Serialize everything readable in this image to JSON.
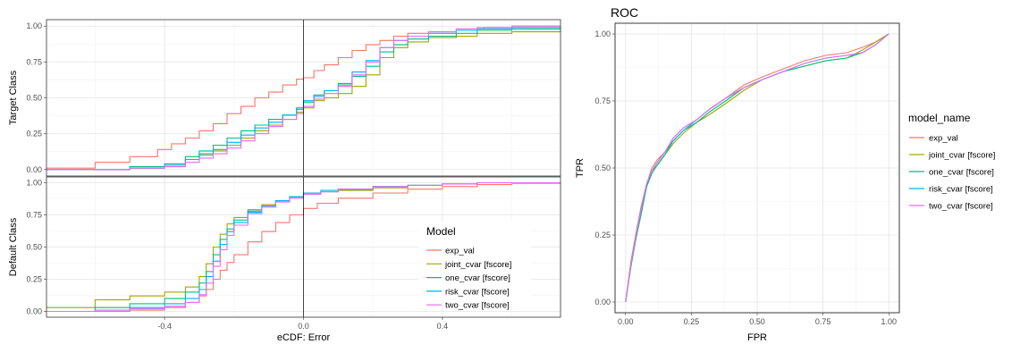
{
  "chart_data": [
    {
      "type": "line",
      "id": "ecdf",
      "xlabel": "eCDF: Error",
      "x_ticks": [
        -0.4,
        0.0,
        0.4
      ],
      "x_tick_labels": [
        "-0.4",
        "0.0",
        "0.4"
      ],
      "xlim": [
        -0.74,
        0.74
      ],
      "vline": 0,
      "grid": true,
      "legend": {
        "title": "Model",
        "placement": "inside-bottom-right-of-lower-facet",
        "entries": [
          "exp_val",
          "joint_cvar [fscore]",
          "one_cvar [fscore]",
          "risk_cvar [fscore]",
          "two_cvar [fscore]"
        ]
      },
      "facets": [
        {
          "label": "Target Class",
          "ylim": [
            0,
            1
          ],
          "y_ticks": [
            0,
            0.25,
            0.5,
            0.75,
            1
          ],
          "y_tick_labels": [
            "0.00",
            "0.25",
            "0.50",
            "0.75",
            "1.00"
          ],
          "series": [
            {
              "name": "exp_val",
              "color": "#F8766D",
              "x": [
                -0.74,
                -0.6,
                -0.5,
                -0.42,
                -0.38,
                -0.34,
                -0.3,
                -0.26,
                -0.22,
                -0.18,
                -0.14,
                -0.1,
                -0.06,
                -0.02,
                0.0,
                0.03,
                0.06,
                0.1,
                0.14,
                0.18,
                0.22,
                0.26,
                0.3,
                0.36,
                0.44,
                0.52,
                0.6,
                0.74
              ],
              "y": [
                0.01,
                0.05,
                0.09,
                0.14,
                0.18,
                0.22,
                0.27,
                0.32,
                0.39,
                0.44,
                0.5,
                0.54,
                0.59,
                0.63,
                0.64,
                0.69,
                0.73,
                0.78,
                0.83,
                0.87,
                0.9,
                0.93,
                0.95,
                0.96,
                0.98,
                0.99,
                1.0,
                1.0
              ]
            },
            {
              "name": "joint_cvar [fscore]",
              "color": "#A3A500",
              "x": [
                -0.74,
                -0.5,
                -0.4,
                -0.34,
                -0.3,
                -0.26,
                -0.22,
                -0.18,
                -0.14,
                -0.1,
                -0.06,
                -0.02,
                0.0,
                0.03,
                0.06,
                0.1,
                0.14,
                0.18,
                0.22,
                0.26,
                0.3,
                0.36,
                0.44,
                0.5,
                0.6,
                0.74
              ],
              "y": [
                0.0,
                0.01,
                0.03,
                0.07,
                0.1,
                0.13,
                0.17,
                0.22,
                0.27,
                0.31,
                0.35,
                0.4,
                0.43,
                0.48,
                0.5,
                0.53,
                0.58,
                0.66,
                0.78,
                0.85,
                0.89,
                0.92,
                0.93,
                0.95,
                0.96,
                0.97
              ]
            },
            {
              "name": "one_cvar [fscore]",
              "color": "#00BF7D",
              "x": [
                -0.74,
                -0.5,
                -0.4,
                -0.34,
                -0.3,
                -0.26,
                -0.22,
                -0.18,
                -0.14,
                -0.1,
                -0.06,
                -0.02,
                0.0,
                0.03,
                0.06,
                0.1,
                0.14,
                0.18,
                0.22,
                0.26,
                0.3,
                0.36,
                0.44,
                0.5,
                0.6,
                0.74
              ],
              "y": [
                0.0,
                0.02,
                0.04,
                0.09,
                0.13,
                0.17,
                0.22,
                0.27,
                0.31,
                0.35,
                0.38,
                0.42,
                0.47,
                0.52,
                0.55,
                0.59,
                0.65,
                0.72,
                0.82,
                0.87,
                0.91,
                0.93,
                0.95,
                0.97,
                0.98,
                0.99
              ]
            },
            {
              "name": "risk_cvar [fscore]",
              "color": "#00B0F6",
              "x": [
                -0.74,
                -0.5,
                -0.4,
                -0.34,
                -0.3,
                -0.26,
                -0.22,
                -0.18,
                -0.14,
                -0.1,
                -0.06,
                -0.02,
                0.0,
                0.03,
                0.06,
                0.1,
                0.14,
                0.18,
                0.22,
                0.26,
                0.3,
                0.36,
                0.44,
                0.5,
                0.6,
                0.74
              ],
              "y": [
                0.0,
                0.01,
                0.03,
                0.07,
                0.11,
                0.14,
                0.19,
                0.24,
                0.29,
                0.33,
                0.38,
                0.43,
                0.48,
                0.51,
                0.55,
                0.6,
                0.68,
                0.76,
                0.85,
                0.9,
                0.93,
                0.95,
                0.97,
                0.98,
                0.99,
                0.99
              ]
            },
            {
              "name": "two_cvar [fscore]",
              "color": "#E76BF3",
              "x": [
                -0.74,
                -0.5,
                -0.4,
                -0.34,
                -0.3,
                -0.26,
                -0.22,
                -0.18,
                -0.14,
                -0.1,
                -0.06,
                -0.02,
                0.0,
                0.03,
                0.06,
                0.1,
                0.14,
                0.18,
                0.22,
                0.26,
                0.3,
                0.36,
                0.44,
                0.5,
                0.6,
                0.74
              ],
              "y": [
                0.0,
                0.01,
                0.02,
                0.05,
                0.08,
                0.11,
                0.15,
                0.2,
                0.25,
                0.3,
                0.35,
                0.39,
                0.44,
                0.49,
                0.53,
                0.58,
                0.66,
                0.75,
                0.85,
                0.9,
                0.93,
                0.96,
                0.98,
                0.99,
                1.0,
                1.0
              ]
            }
          ]
        },
        {
          "label": "Default Class",
          "ylim": [
            0,
            1
          ],
          "y_ticks": [
            0,
            0.25,
            0.5,
            0.75,
            1
          ],
          "y_tick_labels": [
            "0.00",
            "0.25",
            "0.50",
            "0.75",
            "1.00"
          ],
          "series": [
            {
              "name": "exp_val",
              "color": "#F8766D",
              "x": [
                -0.74,
                -0.5,
                -0.4,
                -0.34,
                -0.3,
                -0.28,
                -0.26,
                -0.24,
                -0.22,
                -0.2,
                -0.16,
                -0.12,
                -0.08,
                -0.04,
                0.0,
                0.04,
                0.1,
                0.2,
                0.3,
                0.4,
                0.5,
                0.6,
                0.74
              ],
              "y": [
                0.0,
                0.01,
                0.03,
                0.07,
                0.12,
                0.17,
                0.25,
                0.32,
                0.38,
                0.44,
                0.54,
                0.62,
                0.69,
                0.75,
                0.8,
                0.84,
                0.88,
                0.92,
                0.95,
                0.97,
                0.985,
                0.995,
                1.0
              ]
            },
            {
              "name": "joint_cvar [fscore]",
              "color": "#A3A500",
              "x": [
                -0.74,
                -0.6,
                -0.5,
                -0.4,
                -0.34,
                -0.3,
                -0.28,
                -0.26,
                -0.24,
                -0.22,
                -0.2,
                -0.16,
                -0.12,
                -0.08,
                -0.04,
                0.0,
                0.05,
                0.1,
                0.2,
                0.3,
                0.4,
                0.5,
                0.74
              ],
              "y": [
                0.03,
                0.09,
                0.12,
                0.15,
                0.19,
                0.27,
                0.37,
                0.5,
                0.6,
                0.68,
                0.73,
                0.79,
                0.83,
                0.86,
                0.89,
                0.91,
                0.93,
                0.94,
                0.96,
                0.98,
                0.99,
                1.0,
                1.0
              ]
            },
            {
              "name": "one_cvar [fscore]",
              "color": "#00BF7D",
              "x": [
                -0.74,
                -0.6,
                -0.5,
                -0.4,
                -0.34,
                -0.3,
                -0.28,
                -0.26,
                -0.24,
                -0.22,
                -0.2,
                -0.16,
                -0.12,
                -0.08,
                -0.04,
                0.0,
                0.05,
                0.1,
                0.2,
                0.3,
                0.4,
                0.5,
                0.74
              ],
              "y": [
                0.0,
                0.03,
                0.06,
                0.1,
                0.15,
                0.22,
                0.31,
                0.44,
                0.56,
                0.64,
                0.71,
                0.78,
                0.82,
                0.86,
                0.89,
                0.91,
                0.93,
                0.95,
                0.97,
                0.98,
                0.99,
                1.0,
                1.0
              ]
            },
            {
              "name": "risk_cvar [fscore]",
              "color": "#00B0F6",
              "x": [
                -0.74,
                -0.6,
                -0.5,
                -0.4,
                -0.34,
                -0.3,
                -0.28,
                -0.26,
                -0.24,
                -0.22,
                -0.2,
                -0.16,
                -0.12,
                -0.08,
                -0.04,
                0.0,
                0.05,
                0.1,
                0.2,
                0.3,
                0.4,
                0.5,
                0.74
              ],
              "y": [
                0.0,
                0.01,
                0.03,
                0.06,
                0.1,
                0.17,
                0.27,
                0.39,
                0.52,
                0.62,
                0.69,
                0.77,
                0.82,
                0.86,
                0.89,
                0.92,
                0.94,
                0.95,
                0.97,
                0.98,
                0.99,
                1.0,
                1.0
              ]
            },
            {
              "name": "two_cvar [fscore]",
              "color": "#E76BF3",
              "x": [
                -0.74,
                -0.6,
                -0.5,
                -0.4,
                -0.34,
                -0.3,
                -0.28,
                -0.26,
                -0.24,
                -0.22,
                -0.2,
                -0.16,
                -0.12,
                -0.08,
                -0.04,
                0.0,
                0.05,
                0.1,
                0.2,
                0.3,
                0.4,
                0.5,
                0.74
              ],
              "y": [
                0.0,
                0.01,
                0.02,
                0.04,
                0.07,
                0.13,
                0.22,
                0.35,
                0.48,
                0.59,
                0.67,
                0.76,
                0.81,
                0.85,
                0.88,
                0.91,
                0.93,
                0.95,
                0.97,
                0.98,
                0.99,
                1.0,
                1.0
              ]
            }
          ]
        }
      ]
    },
    {
      "type": "line",
      "id": "roc",
      "title": "ROC",
      "xlabel": "FPR",
      "ylabel": "TPR",
      "xlim": [
        -0.04,
        1.04
      ],
      "ylim": [
        -0.04,
        1.04
      ],
      "x_ticks": [
        0,
        0.25,
        0.5,
        0.75,
        1
      ],
      "x_tick_labels": [
        "0.00",
        "0.25",
        "0.50",
        "0.75",
        "1.00"
      ],
      "y_ticks": [
        0,
        0.25,
        0.5,
        0.75,
        1
      ],
      "y_tick_labels": [
        "0.00",
        "0.25",
        "0.50",
        "0.75",
        "1.00"
      ],
      "grid": true,
      "legend": {
        "title": "model_name",
        "placement": "right",
        "entries": [
          "exp_val",
          "joint_cvar [fscore]",
          "one_cvar [fscore]",
          "risk_cvar [fscore]",
          "two_cvar [fscore]"
        ]
      },
      "series": [
        {
          "name": "exp_val",
          "color": "#F8766D",
          "x": [
            0,
            0.02,
            0.04,
            0.06,
            0.08,
            0.1,
            0.12,
            0.15,
            0.18,
            0.22,
            0.27,
            0.32,
            0.38,
            0.45,
            0.52,
            0.6,
            0.68,
            0.76,
            0.84,
            0.9,
            0.95,
            1.0
          ],
          "y": [
            0,
            0.15,
            0.26,
            0.36,
            0.44,
            0.5,
            0.53,
            0.56,
            0.61,
            0.65,
            0.68,
            0.72,
            0.76,
            0.81,
            0.84,
            0.87,
            0.9,
            0.92,
            0.93,
            0.95,
            0.97,
            1.0
          ]
        },
        {
          "name": "joint_cvar [fscore]",
          "color": "#A3A500",
          "x": [
            0,
            0.02,
            0.04,
            0.06,
            0.08,
            0.1,
            0.12,
            0.15,
            0.18,
            0.22,
            0.27,
            0.32,
            0.38,
            0.45,
            0.52,
            0.6,
            0.68,
            0.76,
            0.84,
            0.9,
            0.95,
            1.0
          ],
          "y": [
            0,
            0.14,
            0.24,
            0.34,
            0.43,
            0.49,
            0.51,
            0.55,
            0.59,
            0.63,
            0.67,
            0.7,
            0.74,
            0.79,
            0.83,
            0.86,
            0.88,
            0.9,
            0.91,
            0.94,
            0.97,
            1.0
          ]
        },
        {
          "name": "one_cvar [fscore]",
          "color": "#00BF7D",
          "x": [
            0,
            0.02,
            0.04,
            0.06,
            0.08,
            0.1,
            0.12,
            0.15,
            0.18,
            0.22,
            0.27,
            0.32,
            0.38,
            0.45,
            0.52,
            0.6,
            0.68,
            0.76,
            0.84,
            0.9,
            0.95,
            1.0
          ],
          "y": [
            0,
            0.13,
            0.24,
            0.33,
            0.43,
            0.48,
            0.51,
            0.55,
            0.6,
            0.64,
            0.67,
            0.71,
            0.75,
            0.8,
            0.83,
            0.86,
            0.88,
            0.9,
            0.91,
            0.93,
            0.96,
            1.0
          ]
        },
        {
          "name": "risk_cvar [fscore]",
          "color": "#00B0F6",
          "x": [
            0,
            0.02,
            0.04,
            0.06,
            0.08,
            0.1,
            0.12,
            0.15,
            0.18,
            0.22,
            0.27,
            0.32,
            0.38,
            0.45,
            0.52,
            0.6,
            0.68,
            0.76,
            0.84,
            0.9,
            0.95,
            1.0
          ],
          "y": [
            0,
            0.14,
            0.25,
            0.35,
            0.44,
            0.49,
            0.52,
            0.56,
            0.6,
            0.64,
            0.68,
            0.72,
            0.76,
            0.8,
            0.83,
            0.86,
            0.89,
            0.91,
            0.92,
            0.93,
            0.96,
            1.0
          ]
        },
        {
          "name": "two_cvar [fscore]",
          "color": "#E76BF3",
          "x": [
            0,
            0.02,
            0.04,
            0.06,
            0.08,
            0.1,
            0.12,
            0.15,
            0.18,
            0.22,
            0.27,
            0.32,
            0.38,
            0.45,
            0.52,
            0.6,
            0.68,
            0.76,
            0.84,
            0.9,
            0.95,
            1.0
          ],
          "y": [
            0,
            0.14,
            0.25,
            0.35,
            0.44,
            0.49,
            0.52,
            0.56,
            0.61,
            0.65,
            0.68,
            0.72,
            0.76,
            0.8,
            0.83,
            0.86,
            0.89,
            0.91,
            0.92,
            0.93,
            0.96,
            1.0
          ]
        }
      ]
    }
  ]
}
